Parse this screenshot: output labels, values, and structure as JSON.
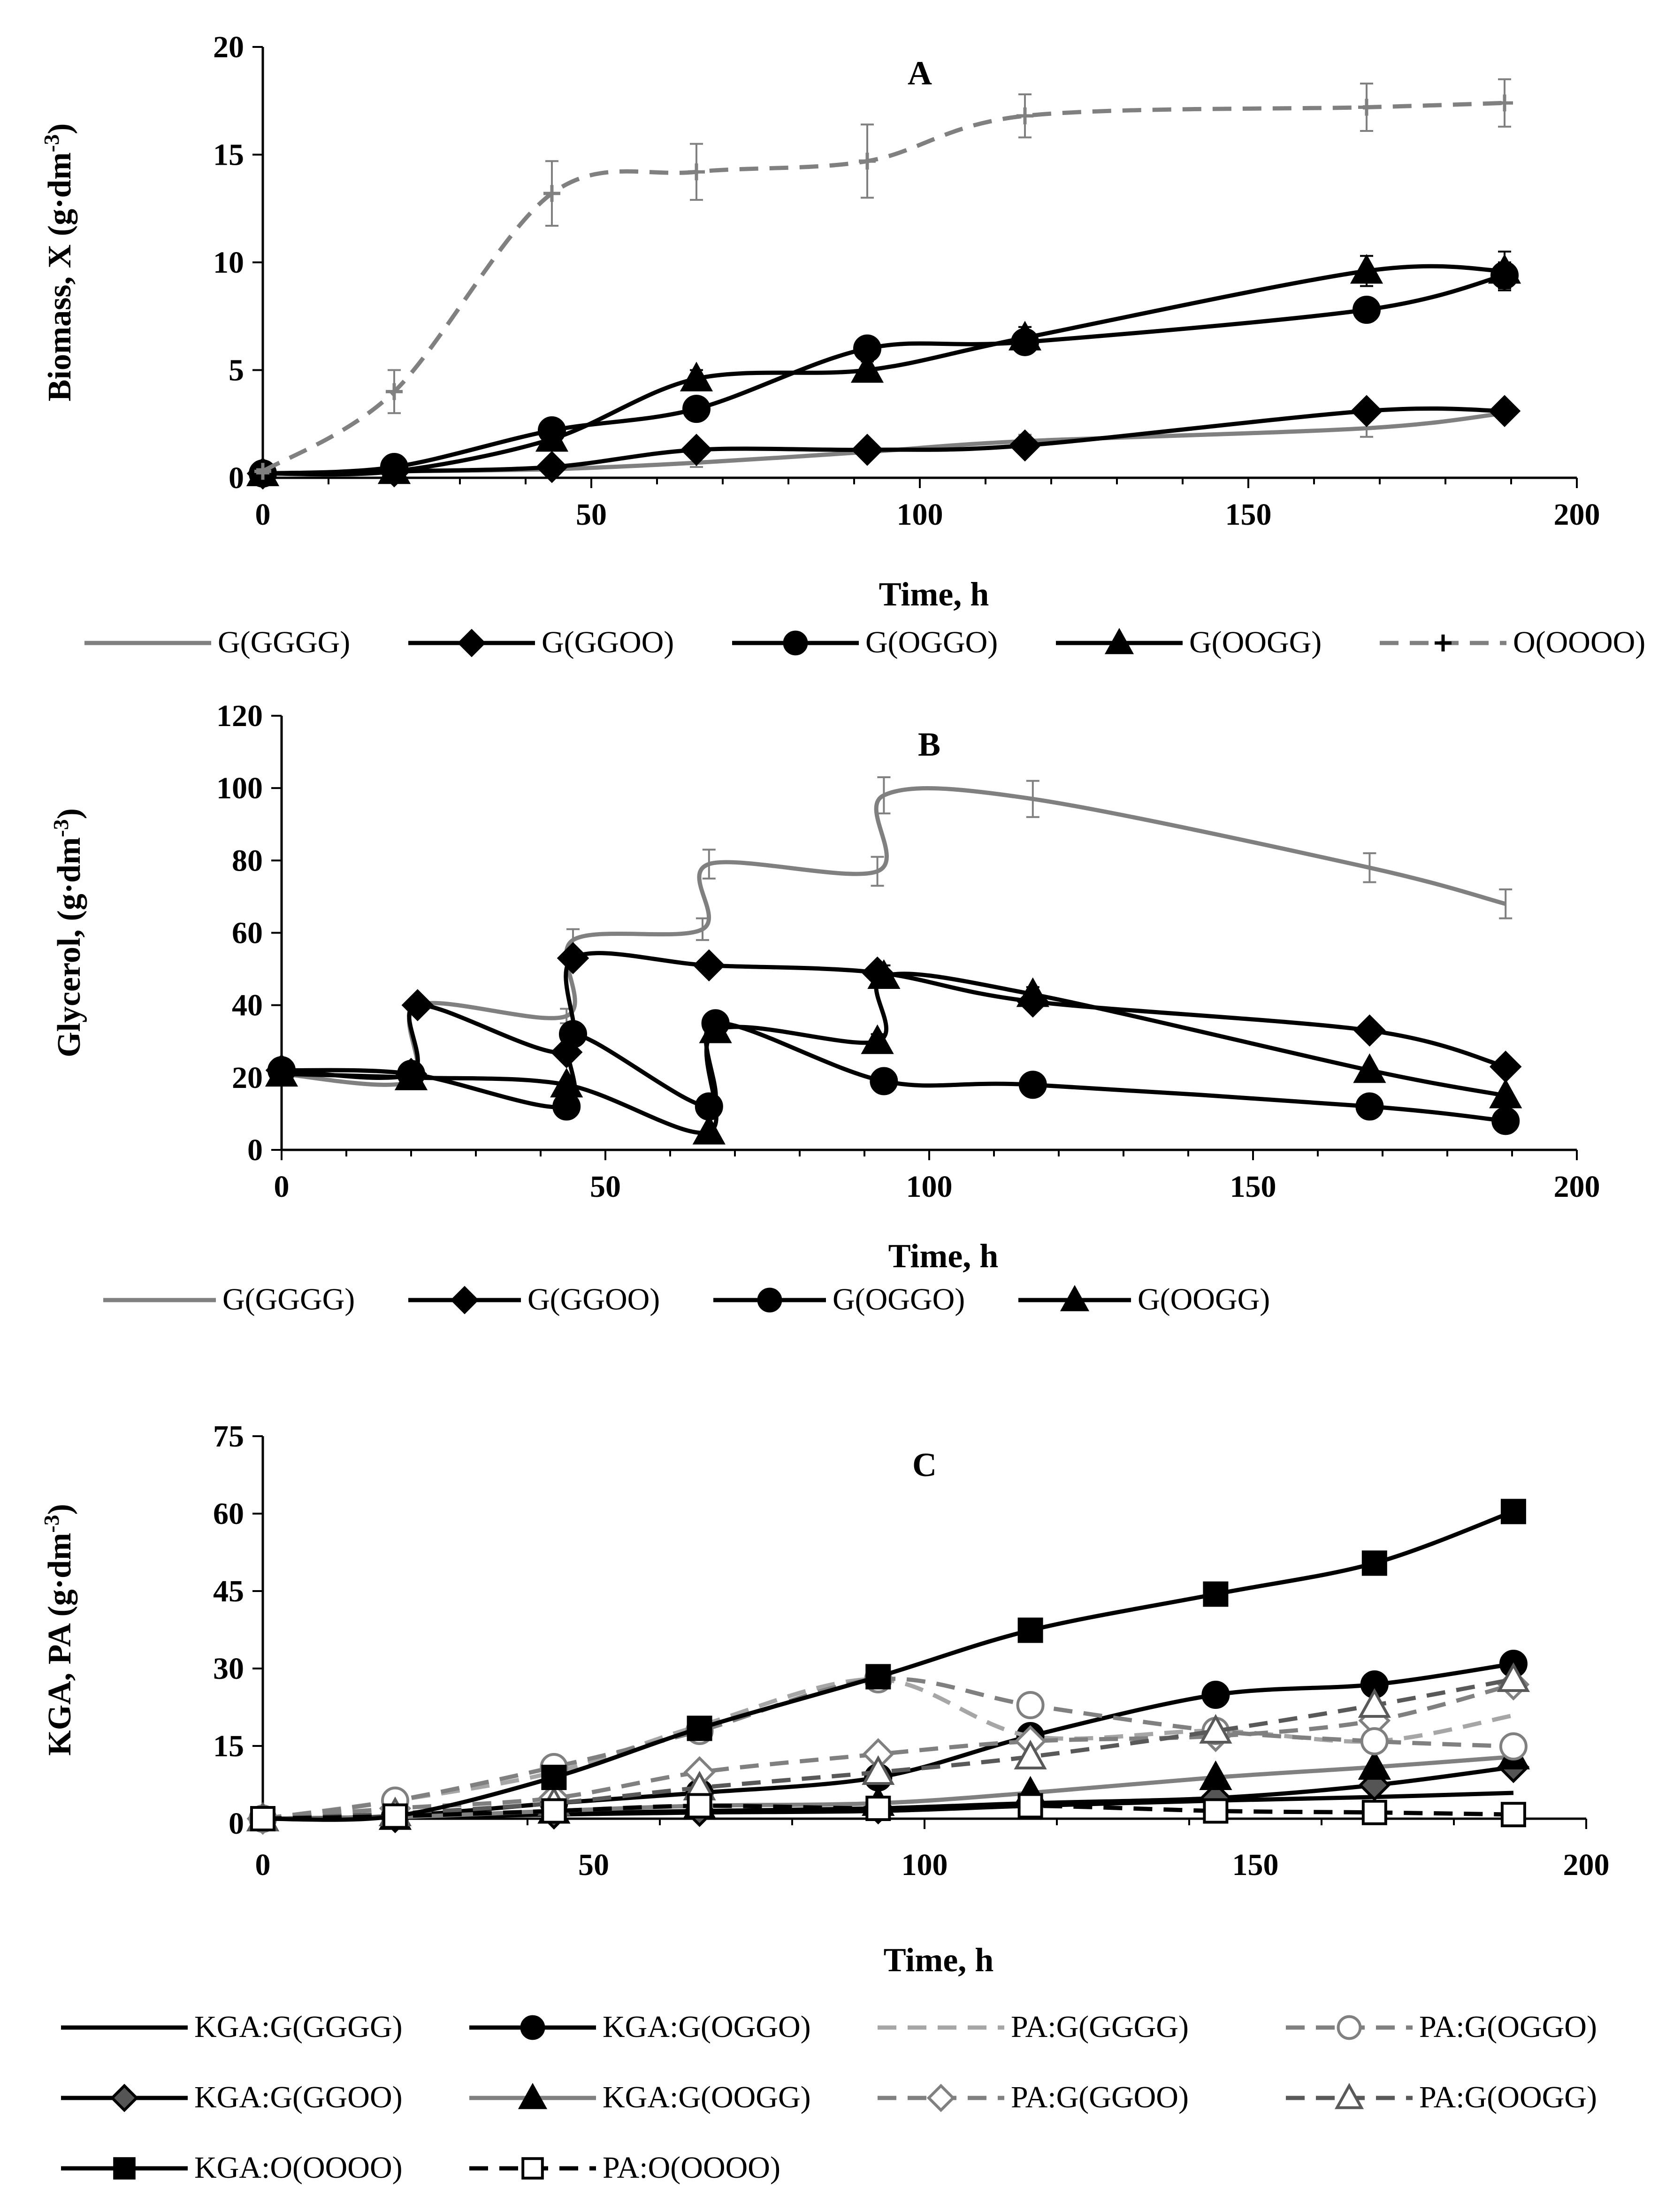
{
  "chart_data": [
    {
      "type": "line",
      "panel_label": "A",
      "xlabel": "Time, h",
      "ylabel_main": "Biomass, X (g·dm",
      "ylabel_sup": "-3",
      "ylabel_close": ")",
      "xlim": [
        0,
        200
      ],
      "ylim": [
        0,
        20
      ],
      "xticks": [
        0,
        50,
        100,
        150,
        200
      ],
      "yticks": [
        0,
        5,
        10,
        15,
        20
      ],
      "series": [
        {
          "name": "G(GGGG)",
          "color": "#808080",
          "dash": false,
          "marker": "none",
          "x": [
            0,
            20,
            44,
            66,
            92,
            116,
            168,
            189
          ],
          "y": [
            0.2,
            0.3,
            0.4,
            0.7,
            1.2,
            1.7,
            2.3,
            3.0
          ],
          "err": [
            0.1,
            0.1,
            0.1,
            0.2,
            0.2,
            0.3,
            0.4,
            0.3
          ]
        },
        {
          "name": "G(GGOO)",
          "color": "#000000",
          "dash": false,
          "marker": "diamond",
          "x": [
            0,
            20,
            44,
            66,
            92,
            116,
            168,
            189
          ],
          "y": [
            0.2,
            0.3,
            0.5,
            1.3,
            1.3,
            1.5,
            3.1,
            3.1
          ],
          "err": [
            0.1,
            0.1,
            0.1,
            0.2,
            0.2,
            0.2,
            0.3,
            0.3
          ]
        },
        {
          "name": "G(OGGO)",
          "color": "#000000",
          "dash": false,
          "marker": "circle",
          "x": [
            0,
            20,
            44,
            66,
            92,
            116,
            168,
            189
          ],
          "y": [
            0.2,
            0.5,
            2.2,
            3.2,
            6.0,
            6.3,
            7.8,
            9.4
          ],
          "err": [
            0.1,
            0.1,
            0.3,
            0.3,
            0.4,
            0.5,
            0.5,
            0.6
          ]
        },
        {
          "name": "G(OOGG)",
          "color": "#000000",
          "dash": false,
          "marker": "triangle",
          "x": [
            0,
            20,
            44,
            66,
            92,
            116,
            168,
            189
          ],
          "y": [
            0.2,
            0.3,
            1.8,
            4.6,
            5.0,
            6.5,
            9.6,
            9.6
          ],
          "err": [
            0.1,
            0.1,
            0.3,
            0.4,
            0.4,
            0.5,
            0.7,
            0.9
          ]
        },
        {
          "name": "O(OOOO)",
          "color": "#808080",
          "dash": true,
          "marker": "plus",
          "x": [
            0,
            20,
            44,
            66,
            92,
            116,
            168,
            189
          ],
          "y": [
            0.3,
            4.0,
            13.2,
            14.2,
            14.7,
            16.8,
            17.2,
            17.4
          ],
          "err": [
            0.1,
            1.0,
            1.5,
            1.3,
            1.7,
            1.0,
            1.1,
            1.1
          ]
        }
      ]
    },
    {
      "type": "line",
      "panel_label": "B",
      "xlabel": "Time, h",
      "ylabel_main": "Glycerol, (g·dm",
      "ylabel_sup": "-3",
      "ylabel_close": ")",
      "xlim": [
        0,
        200
      ],
      "ylim": [
        0,
        120
      ],
      "xticks": [
        0,
        50,
        100,
        150,
        200
      ],
      "yticks": [
        0,
        20,
        40,
        60,
        80,
        100,
        120
      ],
      "series": [
        {
          "name": "G(GGGG)",
          "color": "#808080",
          "dash": false,
          "marker": "none",
          "x": [
            0,
            20,
            21,
            44,
            45,
            65,
            66,
            92,
            93,
            116,
            168,
            189
          ],
          "y": [
            21,
            19,
            40,
            37,
            58,
            61,
            79,
            77,
            98,
            97,
            78,
            68
          ],
          "err": [
            1,
            1,
            2,
            2,
            3,
            3,
            4,
            4,
            5,
            5,
            4,
            4
          ]
        },
        {
          "name": "G(GGOO)",
          "color": "#000000",
          "dash": false,
          "marker": "diamond",
          "x": [
            0,
            20,
            21,
            44,
            45,
            66,
            92,
            116,
            168,
            189
          ],
          "y": [
            22,
            21,
            40,
            27,
            53,
            51,
            49,
            41,
            33,
            23
          ],
          "err": [
            1,
            1,
            1,
            2,
            2,
            2,
            2,
            2,
            1,
            1
          ]
        },
        {
          "name": "G(OGGO)",
          "color": "#000000",
          "dash": false,
          "marker": "circle",
          "x": [
            0,
            20,
            44,
            45,
            66,
            67,
            93,
            116,
            168,
            189
          ],
          "y": [
            22,
            21,
            12,
            32,
            12,
            35,
            19,
            18,
            12,
            8
          ],
          "err": [
            1,
            1,
            1,
            2,
            1,
            2,
            1,
            1,
            1,
            1
          ]
        },
        {
          "name": "G(OOGG)",
          "color": "#000000",
          "dash": false,
          "marker": "triangle",
          "x": [
            0,
            20,
            44,
            66,
            67,
            92,
            93,
            116,
            168,
            189
          ],
          "y": [
            21,
            20,
            18,
            5,
            33,
            30,
            48,
            43,
            22,
            15
          ],
          "err": [
            1,
            1,
            1,
            1,
            2,
            2,
            3,
            2,
            1,
            1
          ]
        }
      ]
    },
    {
      "type": "line",
      "panel_label": "C",
      "xlabel": "Time, h",
      "ylabel_main": "KGA, PA (g·dm",
      "ylabel_sup": "-3",
      "ylabel_close": ")",
      "xlim": [
        0,
        200
      ],
      "ylim": [
        0,
        75
      ],
      "xticks": [
        0,
        50,
        100,
        150,
        200
      ],
      "yticks": [
        0,
        15,
        30,
        45,
        60,
        75
      ],
      "series": [
        {
          "name": "KGA:G(GGGG)",
          "color": "#000000",
          "dash": false,
          "marker": "none",
          "fill": "#000000",
          "x": [
            0,
            20,
            44,
            66,
            93,
            116,
            144,
            168,
            189
          ],
          "y": [
            0,
            0.3,
            0.8,
            1.2,
            1.5,
            2.5,
            3.5,
            4.2,
            5.0
          ]
        },
        {
          "name": "KGA:G(GGOO)",
          "color": "#000000",
          "dash": false,
          "marker": "diamond",
          "fill": "#555555",
          "x": [
            0,
            20,
            44,
            66,
            93,
            116,
            144,
            168,
            189
          ],
          "y": [
            0,
            0.3,
            1.0,
            1.5,
            2.0,
            3.0,
            4.0,
            6.5,
            10.0
          ]
        },
        {
          "name": "KGA:G(OGGO)",
          "color": "#000000",
          "dash": false,
          "marker": "circle",
          "fill": "#000000",
          "x": [
            0,
            20,
            44,
            66,
            93,
            116,
            144,
            168,
            189
          ],
          "y": [
            0,
            0.5,
            3.0,
            5.0,
            8.0,
            16.0,
            24.0,
            26.0,
            30.0
          ]
        },
        {
          "name": "KGA:G(OOGG)",
          "color": "#808080",
          "dash": false,
          "marker": "triangle",
          "fill": "#000000",
          "x": [
            0,
            20,
            44,
            66,
            93,
            116,
            144,
            168,
            189
          ],
          "y": [
            0,
            0.3,
            1.5,
            2.5,
            3.0,
            5.0,
            8.0,
            10.0,
            12.0
          ]
        },
        {
          "name": "PA:G(GGGG)",
          "color": "#a6a6a6",
          "dash": true,
          "marker": "none",
          "fill": "#ffffff",
          "x": [
            0,
            20,
            44,
            66,
            93,
            116,
            144,
            168,
            189
          ],
          "y": [
            0,
            3.5,
            9.0,
            18.0,
            27.0,
            16.0,
            17.0,
            15.0,
            20.0
          ]
        },
        {
          "name": "PA:G(GGOO)",
          "color": "#808080",
          "dash": true,
          "marker": "diamond",
          "fill": "#ffffff",
          "x": [
            0,
            20,
            44,
            66,
            93,
            116,
            144,
            168,
            189
          ],
          "y": [
            0,
            2.0,
            4.0,
            9.0,
            12.5,
            15.0,
            16.0,
            19.0,
            26.0
          ]
        },
        {
          "name": "PA:G(OGGO)",
          "color": "#808080",
          "dash": true,
          "marker": "circle",
          "fill": "#ffffff",
          "x": [
            0,
            20,
            44,
            66,
            93,
            116,
            144,
            168,
            189
          ],
          "y": [
            0,
            3.5,
            10.0,
            17.0,
            27.0,
            22.0,
            17.0,
            15.0,
            14.0
          ]
        },
        {
          "name": "PA:G(OOGG)",
          "color": "#595959",
          "dash": true,
          "marker": "triangle",
          "fill": "#ffffff",
          "x": [
            0,
            20,
            44,
            66,
            93,
            116,
            144,
            168,
            189
          ],
          "y": [
            0,
            1.0,
            3.0,
            6.0,
            9.0,
            12.0,
            17.0,
            22.0,
            27.0
          ]
        },
        {
          "name": "KGA:O(OOOO)",
          "color": "#000000",
          "dash": false,
          "marker": "square",
          "fill": "#000000",
          "x": [
            0,
            20,
            44,
            66,
            93,
            116,
            144,
            168,
            189
          ],
          "y": [
            0,
            0.5,
            8.0,
            17.5,
            27.5,
            36.5,
            43.5,
            49.5,
            59.5
          ]
        },
        {
          "name": "PA:O(OOOO)",
          "color": "#000000",
          "dash": true,
          "marker": "square",
          "fill": "#ffffff",
          "x": [
            0,
            20,
            44,
            66,
            93,
            116,
            144,
            168,
            189
          ],
          "y": [
            0,
            0.5,
            1.5,
            2.5,
            2.0,
            2.5,
            1.5,
            1.2,
            0.8
          ]
        }
      ]
    }
  ]
}
